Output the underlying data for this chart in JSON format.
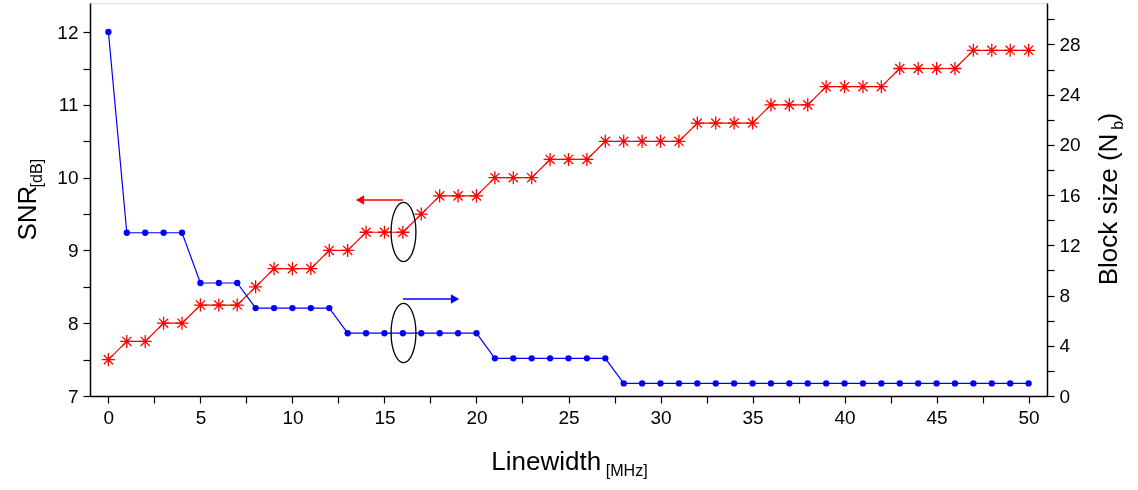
{
  "chart_data": {
    "type": "line",
    "xlabel": "Linewidth$_{[MHz]}$",
    "ylabel": "SNR$_{[dB]}$",
    "y2label": "Block size (N$_{b}$)",
    "x": [
      0,
      1,
      2,
      3,
      4,
      5,
      6,
      7,
      8,
      9,
      10,
      11,
      12,
      13,
      14,
      15,
      16,
      17,
      18,
      19,
      20,
      21,
      22,
      23,
      24,
      25,
      26,
      27,
      28,
      29,
      30,
      31,
      32,
      33,
      34,
      35,
      36,
      37,
      38,
      39,
      40,
      41,
      42,
      43,
      44,
      45,
      46,
      47,
      48,
      49,
      50
    ],
    "series": [
      {
        "color": "#ff0000",
        "marker": "cross",
        "values": [
          7.5,
          7.75,
          7.75,
          8,
          8,
          8.25,
          8.25,
          8.25,
          8.5,
          8.75,
          8.75,
          8.75,
          9,
          9,
          9.25,
          9.25,
          9.25,
          9.5,
          9.75,
          9.75,
          9.75,
          10,
          10,
          10,
          10.25,
          10.25,
          10.25,
          10.5,
          10.5,
          10.5,
          10.5,
          10.5,
          10.75,
          10.75,
          10.75,
          10.75,
          11,
          11,
          11,
          11.25,
          11.25,
          11.25,
          11.25,
          11.5,
          11.5,
          11.5,
          11.5,
          11.75,
          11.75,
          11.75,
          11.75
        ]
      },
      {
        "color": "#0000ff",
        "marker": "circle",
        "axis": "y2",
        "values": [
          29,
          13,
          13,
          13,
          13,
          9,
          9,
          9,
          7,
          7,
          7,
          7,
          7,
          5,
          5,
          5,
          5,
          5,
          5,
          5,
          5,
          3,
          3,
          3,
          3,
          3,
          3,
          3,
          1,
          1,
          1,
          1,
          1,
          1,
          1,
          1,
          1,
          1,
          1,
          1,
          1,
          1,
          1,
          1,
          1,
          1,
          1,
          1,
          1,
          1,
          1
        ]
      }
    ],
    "xlim": [
      -1,
      51
    ],
    "ylim": [
      7,
      12.4
    ],
    "y2lim": [
      0,
      31.3
    ],
    "xticks": [
      0,
      {
        "value": 2.5,
        "label": null
      },
      5,
      {
        "value": 7.5,
        "label": null
      },
      10,
      {
        "value": 12.5,
        "label": null
      },
      15,
      {
        "value": 17.5,
        "label": null
      },
      20,
      {
        "value": 22.5,
        "label": null
      },
      25,
      {
        "value": 27.5,
        "label": null
      },
      30,
      {
        "value": 32.5,
        "label": null
      },
      35,
      {
        "value": 37.5,
        "label": null
      },
      40,
      {
        "value": 42.5,
        "label": null
      },
      45,
      {
        "value": 47.5,
        "label": null
      },
      50
    ],
    "yticks": [
      7,
      {
        "value": 7.5,
        "label": null
      },
      8,
      {
        "value": 8.5,
        "label": null
      },
      9,
      {
        "value": 9.5,
        "label": null
      },
      10,
      {
        "value": 10.5,
        "label": null
      },
      11,
      {
        "value": 11.5,
        "label": null
      },
      12
    ],
    "y2ticks": [
      0,
      {
        "value": 2,
        "label": null
      },
      4,
      {
        "value": 6,
        "label": null
      },
      8,
      {
        "value": 10,
        "label": null
      },
      12,
      {
        "value": 14,
        "label": null
      },
      16,
      {
        "value": 18,
        "label": null
      },
      20,
      {
        "value": 22,
        "label": null
      },
      24,
      {
        "value": 26,
        "label": null
      },
      28,
      {
        "value": 30,
        "label": null
      }
    ],
    "grid": false,
    "line_style": "solid"
  }
}
